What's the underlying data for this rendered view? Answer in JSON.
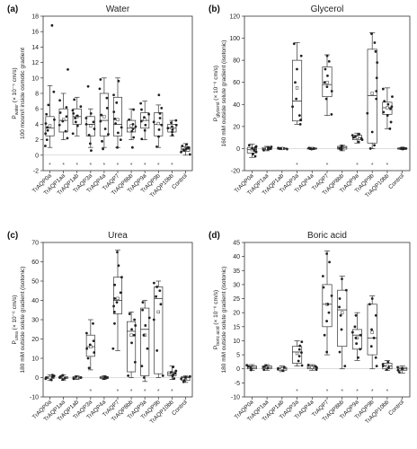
{
  "chart_data": [
    {
      "type": "box",
      "tag": "(a)",
      "title": "Water",
      "ylabel_line1": "P",
      "ylabel_sub": "water",
      "ylabel_rest": " (× 10⁻⁵ cm/s)",
      "ylabel_line2": "100 mosm/l inside osmotic gradient",
      "ylim": [
        -2,
        18
      ],
      "yticks": [
        -2,
        0,
        2,
        4,
        6,
        8,
        10,
        12,
        14,
        16,
        18
      ],
      "categories": [
        "TrAQP0a",
        "TrAQP1aa",
        "TrAQP1ab",
        "TrAQP3a",
        "TrAQP4a",
        "TrAQP7",
        "TrAQP8bb",
        "TrAQP9a",
        "TrAQP9b",
        "TrAQP10bb",
        "Control"
      ],
      "significant": [
        true,
        true,
        true,
        true,
        true,
        true,
        true,
        true,
        true,
        true,
        false
      ],
      "series": [
        {
          "q1": 2.5,
          "median": 3.5,
          "q3": 5.0,
          "min": 1.0,
          "max": 9.0,
          "mean": 3.8,
          "points": [
            1.2,
            2.0,
            2.8,
            3.2,
            3.6,
            4.1,
            4.6,
            5.3,
            6.5,
            8.2,
            16.8
          ]
        },
        {
          "q1": 3.0,
          "median": 4.5,
          "q3": 6.0,
          "min": 2.0,
          "max": 8.0,
          "mean": 4.6,
          "points": [
            2.2,
            3.1,
            3.9,
            4.4,
            5.0,
            5.5,
            6.2,
            7.1,
            11.1
          ]
        },
        {
          "q1": 4.0,
          "median": 5.0,
          "q3": 6.0,
          "min": 2.5,
          "max": 7.5,
          "mean": 5.0,
          "points": [
            2.8,
            3.8,
            4.3,
            4.8,
            5.1,
            5.4,
            5.8,
            6.3,
            7.2
          ]
        },
        {
          "q1": 2.5,
          "median": 4.0,
          "q3": 5.0,
          "min": 1.0,
          "max": 6.0,
          "mean": 3.8,
          "points": [
            0.6,
            1.5,
            2.6,
            3.4,
            4.0,
            4.3,
            4.8,
            5.4,
            8.9
          ]
        },
        {
          "q1": 2.5,
          "median": 4.5,
          "q3": 8.0,
          "min": 1.0,
          "max": 10.0,
          "mean": 5.0,
          "points": [
            0.8,
            1.8,
            2.7,
            3.4,
            4.4,
            5.2,
            6.1,
            7.4,
            8.6,
            9.8
          ]
        },
        {
          "q1": 2.5,
          "median": 4.0,
          "q3": 7.5,
          "min": 1.0,
          "max": 10.0,
          "mean": 4.6,
          "points": [
            1.0,
            2.0,
            2.9,
            3.6,
            4.1,
            4.7,
            5.6,
            6.8,
            7.8,
            9.6
          ]
        },
        {
          "q1": 3.0,
          "median": 3.5,
          "q3": 4.5,
          "min": 2.0,
          "max": 6.0,
          "mean": 3.8,
          "points": [
            1.0,
            2.3,
            3.1,
            3.4,
            3.7,
            4.0,
            4.6,
            5.9
          ]
        },
        {
          "q1": 3.5,
          "median": 4.5,
          "q3": 5.5,
          "min": 2.0,
          "max": 7.0,
          "mean": 4.6,
          "points": [
            2.1,
            3.2,
            3.9,
            4.4,
            4.9,
            5.3,
            5.9,
            6.7
          ]
        },
        {
          "q1": 2.5,
          "median": 4.0,
          "q3": 5.5,
          "min": 1.0,
          "max": 6.5,
          "mean": 4.1,
          "points": [
            1.1,
            2.4,
            3.3,
            3.9,
            4.3,
            4.8,
            5.4,
            6.1,
            7.8
          ]
        },
        {
          "q1": 3.0,
          "median": 3.5,
          "q3": 4.0,
          "min": 2.5,
          "max": 4.5,
          "mean": 3.5,
          "points": [
            2.6,
            3.0,
            3.3,
            3.5,
            3.7,
            3.9,
            4.2,
            4.5
          ]
        },
        {
          "q1": 0.5,
          "median": 0.8,
          "q3": 1.1,
          "min": 0.0,
          "max": 1.5,
          "mean": 0.8,
          "points": [
            0.1,
            0.4,
            0.6,
            0.7,
            0.8,
            0.9,
            1.0,
            1.2,
            1.4
          ]
        }
      ]
    },
    {
      "type": "box",
      "tag": "(b)",
      "title": "Glycerol",
      "ylabel_line1": "P",
      "ylabel_sub": "glycerol",
      "ylabel_rest": " (× 10⁻⁶ cm/s)",
      "ylabel_line2": "160 mM outside solute gradient (isotonic)",
      "ylim": [
        -20,
        120
      ],
      "yticks": [
        -20,
        0,
        20,
        40,
        60,
        80,
        100,
        120
      ],
      "categories": [
        "TrAQP0a",
        "TrAQP1aa",
        "TrAQP1ab",
        "TrAQP3a",
        "TrAQP4a",
        "TrAQP7",
        "TrAQP8bb",
        "TrAQP9a",
        "TrAQP9b",
        "TrAQP10bb",
        "Control"
      ],
      "significant": [
        false,
        false,
        false,
        true,
        false,
        true,
        false,
        true,
        true,
        true,
        false
      ],
      "series": [
        {
          "q1": -4,
          "median": -1,
          "q3": 1,
          "min": -8,
          "max": 4,
          "mean": -1,
          "points": [
            -7,
            -5,
            -3,
            -2,
            -1,
            0,
            1,
            2,
            3
          ]
        },
        {
          "q1": -1,
          "median": 0,
          "q3": 1,
          "min": -2,
          "max": 2,
          "mean": 0,
          "points": [
            -1.5,
            -0.5,
            0,
            0.5,
            1,
            1.5
          ]
        },
        {
          "q1": -0.5,
          "median": 0,
          "q3": 0.5,
          "min": -1,
          "max": 1,
          "mean": 0,
          "points": [
            -0.5,
            0,
            0,
            0.5
          ]
        },
        {
          "q1": 25,
          "median": 43,
          "q3": 80,
          "min": 22,
          "max": 96,
          "mean": 55,
          "points": [
            22,
            26,
            30,
            38,
            45,
            60,
            72,
            84,
            95
          ]
        },
        {
          "q1": -0.5,
          "median": 0,
          "q3": 0.5,
          "min": -1,
          "max": 1,
          "mean": 0,
          "points": [
            -0.5,
            0,
            0,
            0.5
          ]
        },
        {
          "q1": 47,
          "median": 58,
          "q3": 74,
          "min": 30,
          "max": 85,
          "mean": 60,
          "points": [
            31,
            45,
            52,
            56,
            60,
            66,
            72,
            79,
            84
          ]
        },
        {
          "q1": -0.5,
          "median": 1,
          "q3": 2,
          "min": -2,
          "max": 3,
          "mean": 1,
          "points": [
            -1,
            0,
            1,
            1.5,
            2,
            2.5
          ]
        },
        {
          "q1": 8,
          "median": 10,
          "q3": 12,
          "min": 5,
          "max": 14,
          "mean": 10,
          "points": [
            6,
            8,
            9,
            10,
            11,
            12,
            13
          ]
        },
        {
          "q1": 5,
          "median": 48,
          "q3": 90,
          "min": 0,
          "max": 105,
          "mean": 50,
          "points": [
            0,
            3,
            15,
            32,
            45,
            52,
            64,
            78,
            88,
            96,
            104
          ]
        },
        {
          "q1": 31,
          "median": 37,
          "q3": 42,
          "min": 18,
          "max": 55,
          "mean": 37,
          "points": [
            18,
            24,
            30,
            33,
            36,
            38,
            40,
            43,
            47,
            54
          ]
        },
        {
          "q1": -0.5,
          "median": 0,
          "q3": 0.5,
          "min": -1,
          "max": 1,
          "mean": 0,
          "points": [
            -0.5,
            0,
            0,
            0.5,
            0.5
          ]
        }
      ]
    },
    {
      "type": "box",
      "tag": "(c)",
      "title": "Urea",
      "ylabel_line1": "P",
      "ylabel_sub": "urea",
      "ylabel_rest": " (× 10⁻⁶ cm/s)",
      "ylabel_line2": "180 mM outside solute gradient (isotonic)",
      "ylim": [
        -10,
        70
      ],
      "yticks": [
        -10,
        0,
        10,
        20,
        30,
        40,
        50,
        60,
        70
      ],
      "categories": [
        "TrAQP0a",
        "TrAQP1aa",
        "TrAQP1ab",
        "TrAQP3a",
        "TrAQP4a",
        "TrAQP7",
        "TrAQP8bb",
        "TrAQP9a",
        "TrAQP9b",
        "TrAQP10bb",
        "Control"
      ],
      "significant": [
        false,
        false,
        false,
        true,
        false,
        true,
        true,
        true,
        true,
        true,
        false
      ],
      "series": [
        {
          "q1": -0.5,
          "median": 0,
          "q3": 0.5,
          "min": -1.5,
          "max": 1.5,
          "mean": 0,
          "points": [
            -1.2,
            -0.6,
            0,
            0.4,
            0.9,
            1.3
          ]
        },
        {
          "q1": -0.5,
          "median": 0,
          "q3": 0.5,
          "min": -1.5,
          "max": 1.5,
          "mean": 0,
          "points": [
            -1,
            -0.4,
            0.1,
            0.6,
            1.2
          ]
        },
        {
          "q1": -0.5,
          "median": 0,
          "q3": 0.5,
          "min": -1,
          "max": 1,
          "mean": 0,
          "points": [
            -0.6,
            0,
            0.5
          ]
        },
        {
          "q1": 11,
          "median": 16,
          "q3": 22,
          "min": 4,
          "max": 30,
          "mean": 16,
          "points": [
            5,
            10,
            13,
            15,
            17,
            19,
            23,
            28
          ]
        },
        {
          "q1": -0.5,
          "median": 0,
          "q3": 0.5,
          "min": -1,
          "max": 1,
          "mean": 0,
          "points": [
            -0.5,
            0,
            0.5
          ]
        },
        {
          "q1": 33,
          "median": 40,
          "q3": 52,
          "min": 14,
          "max": 66,
          "mean": 41,
          "points": [
            15,
            28,
            34,
            37,
            39,
            41,
            44,
            48,
            52,
            58,
            65
          ]
        },
        {
          "q1": 3,
          "median": 24,
          "q3": 29,
          "min": 0,
          "max": 34,
          "mean": 22,
          "points": [
            1,
            8,
            18,
            22,
            25,
            27,
            30,
            33
          ]
        },
        {
          "q1": 1,
          "median": 25,
          "q3": 36,
          "min": -2,
          "max": 40,
          "mean": 22,
          "points": [
            0,
            6,
            15,
            22,
            27,
            31,
            35,
            39
          ]
        },
        {
          "q1": 2,
          "median": 41,
          "q3": 47,
          "min": 0,
          "max": 50,
          "mean": 34,
          "points": [
            1,
            14,
            30,
            38,
            42,
            45,
            47,
            49
          ]
        },
        {
          "q1": 1,
          "median": 2,
          "q3": 3,
          "min": -1,
          "max": 6,
          "mean": 2,
          "points": [
            -0.5,
            0.8,
            1.6,
            2.2,
            2.8,
            3.5,
            5.5
          ]
        },
        {
          "q1": -1.5,
          "median": 0,
          "q3": 0.5,
          "min": -2.5,
          "max": 1,
          "mean": -0.3,
          "points": [
            -2.2,
            -1.4,
            -0.6,
            0,
            0.6
          ]
        }
      ]
    },
    {
      "type": "box",
      "tag": "(d)",
      "title": "Boric acid",
      "ylabel_line1": "P",
      "ylabel_sub": "boric acid",
      "ylabel_rest": " (× 10⁻⁶ cm/s)",
      "ylabel_line2": "180 mM outside solute gradient (isotonic)",
      "ylim": [
        -10,
        45
      ],
      "yticks": [
        -10,
        -5,
        0,
        5,
        10,
        15,
        20,
        25,
        30,
        35,
        40,
        45
      ],
      "categories": [
        "TrAQP0a",
        "TrAQP1aa",
        "TrAQP1ab",
        "TrAQP3a",
        "TrAQP4a",
        "TrAQP7",
        "TrAQP8bb",
        "TrAQP9a",
        "TrAQP9b",
        "TrAQP10bb",
        "Control"
      ],
      "significant": [
        false,
        false,
        false,
        true,
        false,
        true,
        true,
        true,
        true,
        true,
        false
      ],
      "series": [
        {
          "q1": 0,
          "median": 0.5,
          "q3": 1,
          "min": -0.5,
          "max": 1.5,
          "mean": 0.5,
          "points": [
            -0.4,
            0.2,
            0.6,
            0.9,
            1.3
          ]
        },
        {
          "q1": 0,
          "median": 0.5,
          "q3": 1,
          "min": -0.5,
          "max": 1.5,
          "mean": 0.5,
          "points": [
            -0.3,
            0.3,
            0.7,
            1.2
          ]
        },
        {
          "q1": -0.5,
          "median": 0,
          "q3": 0.5,
          "min": -1,
          "max": 1,
          "mean": 0,
          "points": [
            -0.6,
            0,
            0.6
          ]
        },
        {
          "q1": 2,
          "median": 6,
          "q3": 8,
          "min": 1,
          "max": 10,
          "mean": 5.5,
          "points": [
            1.2,
            2.8,
            4.5,
            5.8,
            6.9,
            8.2,
            9.6
          ]
        },
        {
          "q1": 0,
          "median": 0.5,
          "q3": 1,
          "min": -0.5,
          "max": 1.5,
          "mean": 0.5,
          "points": [
            -0.3,
            0.4,
            0.9,
            1.4
          ]
        },
        {
          "q1": 15,
          "median": 23,
          "q3": 30,
          "min": 5,
          "max": 42,
          "mean": 23,
          "points": [
            6,
            12,
            17,
            20,
            23,
            26,
            29,
            33,
            38,
            41
          ]
        },
        {
          "q1": 8,
          "median": 21,
          "q3": 28,
          "min": 0,
          "max": 33,
          "mean": 20,
          "points": [
            1,
            6,
            14,
            19,
            22,
            25,
            28,
            32
          ]
        },
        {
          "q1": 7,
          "median": 12,
          "q3": 14,
          "min": 3,
          "max": 20,
          "mean": 11,
          "points": [
            4,
            7,
            9,
            11,
            12,
            13,
            15,
            19
          ]
        },
        {
          "q1": 5,
          "median": 11,
          "q3": 23,
          "min": 0,
          "max": 26,
          "mean": 13,
          "points": [
            1,
            4,
            8,
            11,
            14,
            19,
            23,
            25
          ]
        },
        {
          "q1": 0,
          "median": 1,
          "q3": 2,
          "min": -0.5,
          "max": 3,
          "mean": 1,
          "points": [
            -0.3,
            0.5,
            1,
            1.6,
            2.4
          ]
        },
        {
          "q1": -0.5,
          "median": 0,
          "q3": 0.5,
          "min": -1.5,
          "max": 1,
          "mean": -0.2,
          "points": [
            -1.2,
            -0.5,
            0,
            0.6
          ]
        }
      ]
    }
  ],
  "significance_marker": "*"
}
